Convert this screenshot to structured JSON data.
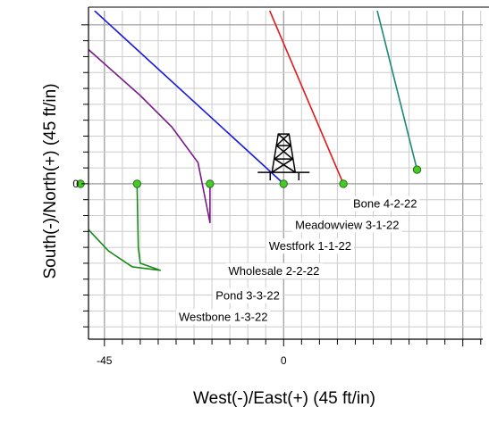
{
  "chart_data": {
    "type": "line",
    "xlabel": "West(-)/East(+) (45 ft/in)",
    "ylabel": "South(-)/North(+) (45 ft/in)",
    "xlim": [
      -49,
      50
    ],
    "ylim": [
      -44,
      49
    ],
    "x_ticks": [
      -45,
      0
    ],
    "y_ticks": [
      0
    ],
    "grid": true,
    "minor_step": 4.5,
    "major_step": 45,
    "colors": {
      "grid_minor": "#cccccc",
      "grid_major": "#999999",
      "surface_marker": "#44cc22",
      "marker_edge": "#2a6b1f"
    },
    "rig_icon": "drilling-rig-icon",
    "series": [
      {
        "color": "#e0197d",
        "points": [
          [
            -49,
            6
          ],
          [
            -51,
            0
          ]
        ]
      },
      {
        "color": "#1a8a1a",
        "points": [
          [
            -49,
            -13
          ],
          [
            -44,
            -19
          ],
          [
            -38,
            -23.5
          ],
          [
            -31,
            -24.5
          ],
          [
            -36,
            -22.5
          ],
          [
            -36.5,
            -18
          ],
          [
            -36.8,
            0
          ]
        ]
      },
      {
        "color": "#7a1a8a",
        "points": [
          [
            -49,
            38
          ],
          [
            -43,
            32
          ],
          [
            -36,
            25
          ],
          [
            -28,
            16
          ],
          [
            -21.5,
            6
          ],
          [
            -18.5,
            -11
          ],
          [
            -18.5,
            0
          ]
        ]
      },
      {
        "color": "#1a1adb",
        "points": [
          [
            -47.5,
            49
          ],
          [
            0,
            0
          ]
        ]
      },
      {
        "color": "#e01a1a",
        "points": [
          [
            -3.5,
            49
          ],
          [
            15,
            0
          ]
        ]
      },
      {
        "color": "#1a8a7a",
        "points": [
          [
            23.5,
            49
          ],
          [
            33.5,
            4
          ]
        ]
      }
    ],
    "surface_points": [
      [
        -51,
        0
      ],
      [
        -36.8,
        0
      ],
      [
        -18.5,
        0
      ],
      [
        0,
        0
      ],
      [
        15,
        0
      ],
      [
        33.5,
        4
      ]
    ],
    "rig_position": [
      0,
      4
    ],
    "well_labels": [
      {
        "text": "Bone 4-2-22",
        "x": 33.5,
        "y": -5.5
      },
      {
        "text": "Meadowview 3-1-22",
        "x": 29,
        "y": -11.5
      },
      {
        "text": "Westfork 1-1-22",
        "x": 17,
        "y": -17.5
      },
      {
        "text": "Wholesale 2-2-22",
        "x": 9,
        "y": -24.5
      },
      {
        "text": "Pond 3-3-22",
        "x": -1,
        "y": -31.5
      },
      {
        "text": "Westbone 1-3-22",
        "x": -4,
        "y": -37.5
      }
    ]
  }
}
